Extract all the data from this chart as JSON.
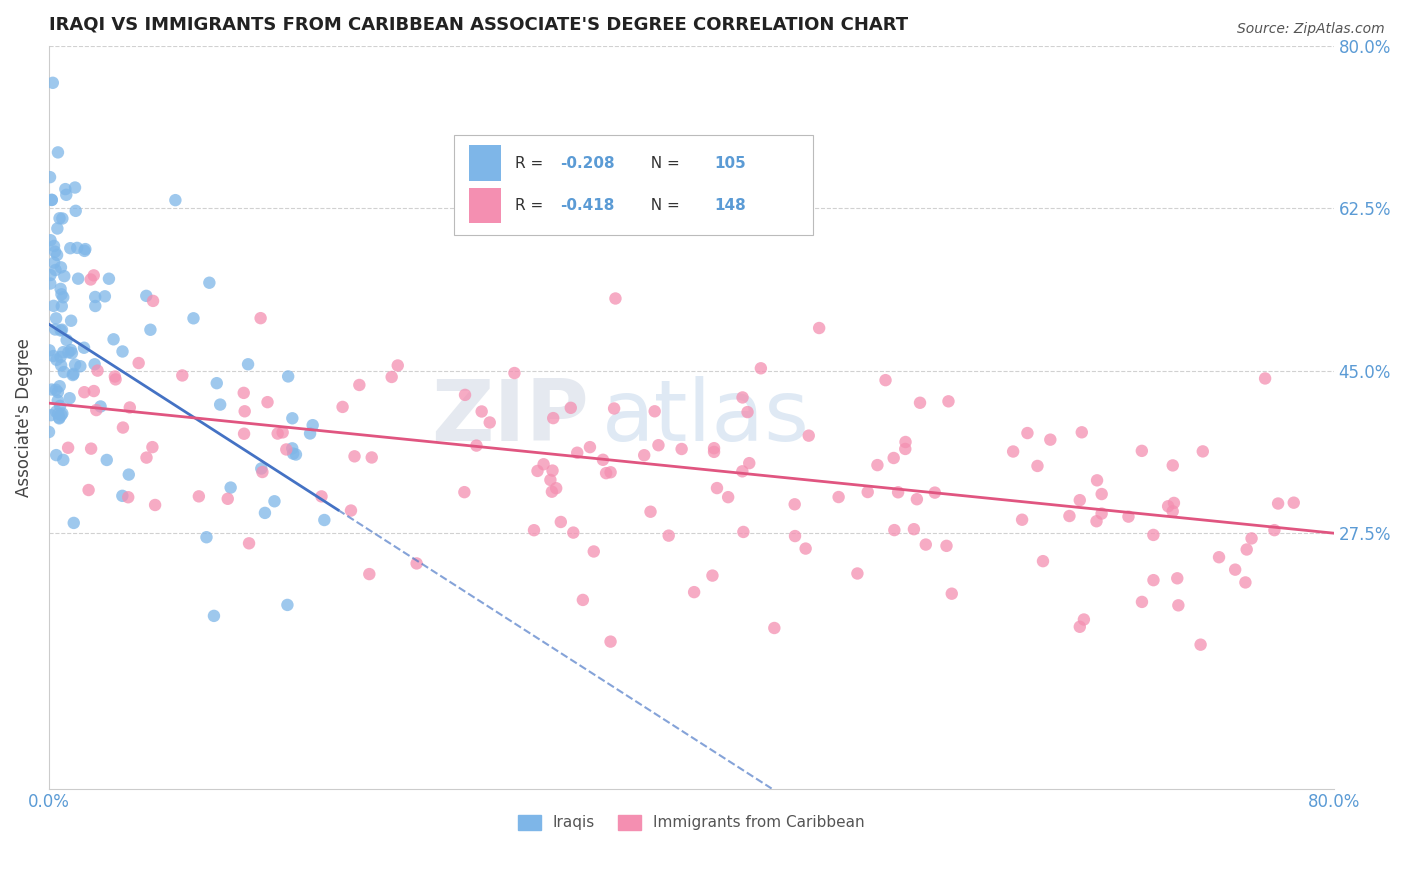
{
  "title": "IRAQI VS IMMIGRANTS FROM CARIBBEAN ASSOCIATE'S DEGREE CORRELATION CHART",
  "source": "Source: ZipAtlas.com",
  "ylabel": "Associate's Degree",
  "xlabel_bottom_left": "0.0%",
  "xlabel_bottom_right": "80.0%",
  "right_yticks": [
    "80.0%",
    "62.5%",
    "45.0%",
    "27.5%"
  ],
  "right_ytick_positions": [
    0.8,
    0.625,
    0.45,
    0.275
  ],
  "xlim": [
    0.0,
    0.8
  ],
  "ylim": [
    0.0,
    0.8
  ],
  "iraqis_color": "#7eb6e8",
  "caribbean_color": "#f48fb1",
  "iraqis_R": -0.208,
  "iraqis_N": 105,
  "caribbean_R": -0.418,
  "caribbean_N": 148,
  "legend_label_iraqis": "Iraqis",
  "legend_label_caribbean": "Immigrants from Caribbean",
  "grid_color": "#cccccc",
  "background_color": "#ffffff",
  "title_fontsize": 13,
  "axis_label_color": "#5b9bd5",
  "watermark_zip": "ZIP",
  "watermark_atlas": "atlas",
  "iraqis_trend_start_x": 0.0,
  "iraqis_trend_start_y": 0.5,
  "iraqis_trend_end_x": 0.18,
  "iraqis_trend_end_y": 0.3,
  "caribbean_trend_start_x": 0.0,
  "caribbean_trend_start_y": 0.415,
  "caribbean_trend_end_x": 0.8,
  "caribbean_trend_end_y": 0.275
}
